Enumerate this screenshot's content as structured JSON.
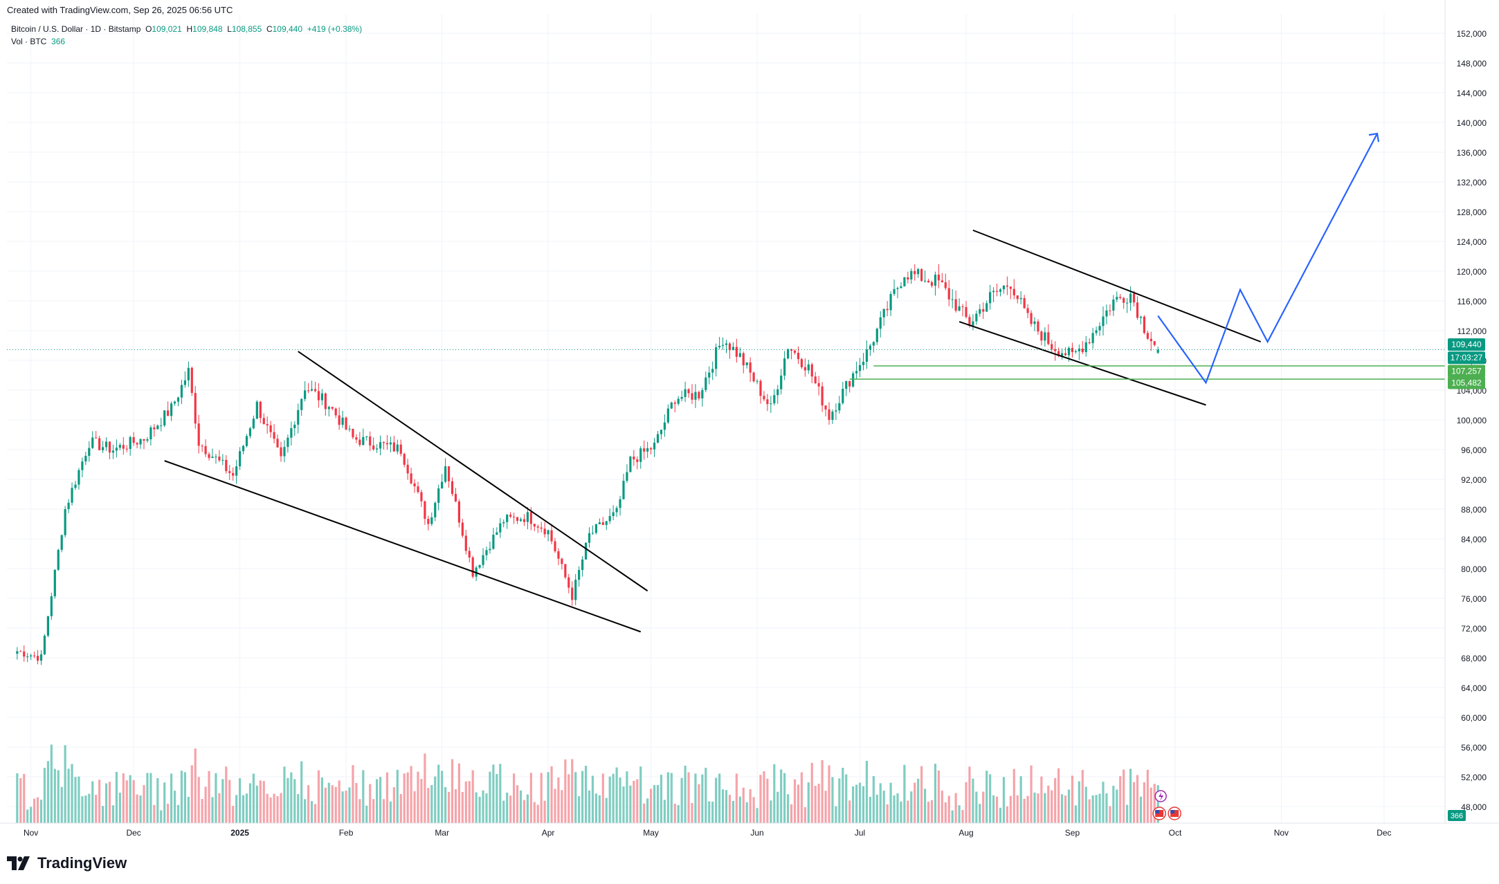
{
  "header": {
    "created_text": "Created with TradingView.com, Sep 26, 2025 06:56 UTC"
  },
  "legend": {
    "symbol": "Bitcoin / U.S. Dollar · 1D · Bitstamp",
    "o_label": "O",
    "o_value": "109,021",
    "h_label": "H",
    "h_value": "109,848",
    "l_label": "L",
    "l_value": "108,855",
    "c_label": "C",
    "c_value": "109,440",
    "change": "+419 (+0.38%)",
    "vol_label": "Vol · BTC",
    "vol_value": "366"
  },
  "brand": {
    "name": "TradingView",
    "logo_icon": "tradingview-logo-icon"
  },
  "price_tags": {
    "last_price": "109,440",
    "countdown": "17:03:27",
    "level_1": "107,257",
    "level_2": "105,482",
    "volume": "366"
  },
  "colors": {
    "up": "#089981",
    "down": "#f23645",
    "vol_up": "#7fcdc1",
    "vol_down": "#f5a3a9",
    "grid": "#f0f3fa",
    "projection": "#2962ff",
    "support": "#4caf50",
    "trendline": "#000000"
  },
  "chart_data": {
    "type": "candlestick",
    "title": "Bitcoin / U.S. Dollar · 1D · Bitstamp",
    "y_axis_ticks": [
      48000,
      52000,
      56000,
      60000,
      64000,
      68000,
      72000,
      76000,
      80000,
      84000,
      88000,
      92000,
      96000,
      100000,
      104000,
      108000,
      112000,
      116000,
      120000,
      124000,
      128000,
      132000,
      136000,
      140000,
      144000,
      148000,
      152000
    ],
    "x_axis_ticks": [
      "Nov",
      "Dec",
      "2025",
      "Feb",
      "Mar",
      "Apr",
      "May",
      "Jun",
      "Jul",
      "Aug",
      "Sep",
      "Oct",
      "Nov",
      "Dec"
    ],
    "ylim": [
      46000,
      154000
    ],
    "close_anchors": [
      {
        "date": "2024-10-28",
        "close": 68900
      },
      {
        "date": "2024-11-04",
        "close": 68000
      },
      {
        "date": "2024-11-11",
        "close": 88000
      },
      {
        "date": "2024-11-18",
        "close": 97000
      },
      {
        "date": "2024-11-25",
        "close": 96000
      },
      {
        "date": "2024-12-04",
        "close": 97500
      },
      {
        "date": "2024-12-12",
        "close": 101500
      },
      {
        "date": "2024-12-17",
        "close": 106500
      },
      {
        "date": "2024-12-20",
        "close": 97000
      },
      {
        "date": "2024-12-30",
        "close": 92500
      },
      {
        "date": "2025-01-06",
        "close": 102000
      },
      {
        "date": "2025-01-13",
        "close": 94500
      },
      {
        "date": "2025-01-20",
        "close": 104500
      },
      {
        "date": "2025-01-27",
        "close": 102000
      },
      {
        "date": "2025-02-03",
        "close": 97500
      },
      {
        "date": "2025-02-17",
        "close": 96000
      },
      {
        "date": "2025-02-25",
        "close": 86000
      },
      {
        "date": "2025-03-02",
        "close": 94000
      },
      {
        "date": "2025-03-10",
        "close": 79500
      },
      {
        "date": "2025-03-19",
        "close": 86500
      },
      {
        "date": "2025-03-26",
        "close": 87000
      },
      {
        "date": "2025-04-01",
        "close": 85000
      },
      {
        "date": "2025-04-08",
        "close": 76300
      },
      {
        "date": "2025-04-13",
        "close": 84500
      },
      {
        "date": "2025-04-21",
        "close": 87500
      },
      {
        "date": "2025-04-25",
        "close": 94500
      },
      {
        "date": "2025-05-02",
        "close": 96500
      },
      {
        "date": "2025-05-08",
        "close": 103000
      },
      {
        "date": "2025-05-15",
        "close": 103500
      },
      {
        "date": "2025-05-22",
        "close": 111000
      },
      {
        "date": "2025-05-27",
        "close": 108500
      },
      {
        "date": "2025-06-05",
        "close": 101500
      },
      {
        "date": "2025-06-10",
        "close": 110000
      },
      {
        "date": "2025-06-16",
        "close": 107000
      },
      {
        "date": "2025-06-22",
        "close": 100500
      },
      {
        "date": "2025-06-30",
        "close": 107000
      },
      {
        "date": "2025-07-03",
        "close": 109000
      },
      {
        "date": "2025-07-10",
        "close": 116000
      },
      {
        "date": "2025-07-14",
        "close": 119800
      },
      {
        "date": "2025-07-24",
        "close": 118500
      },
      {
        "date": "2025-08-02",
        "close": 113000
      },
      {
        "date": "2025-08-08",
        "close": 116500
      },
      {
        "date": "2025-08-14",
        "close": 118500
      },
      {
        "date": "2025-08-19",
        "close": 113500
      },
      {
        "date": "2025-08-26",
        "close": 110000
      },
      {
        "date": "2025-09-01",
        "close": 108500
      },
      {
        "date": "2025-09-06",
        "close": 111000
      },
      {
        "date": "2025-09-13",
        "close": 116000
      },
      {
        "date": "2025-09-18",
        "close": 117000
      },
      {
        "date": "2025-09-22",
        "close": 112500
      },
      {
        "date": "2025-09-26",
        "close": 109440
      }
    ],
    "last_candle": {
      "date": "2025-09-26",
      "open": 109021,
      "high": 109848,
      "low": 108855,
      "close": 109440
    },
    "horizontal_levels": [
      107257,
      105482
    ],
    "falling_wedge_1": {
      "upper": [
        {
          "date": "2025-01-18",
          "price": 109200
        },
        {
          "date": "2025-04-30",
          "price": 77000
        }
      ],
      "lower": [
        {
          "date": "2024-12-10",
          "price": 94500
        },
        {
          "date": "2025-04-28",
          "price": 71500
        }
      ]
    },
    "falling_channel_2": {
      "upper": [
        {
          "date": "2025-08-03",
          "price": 125500
        },
        {
          "date": "2025-10-26",
          "price": 110500
        }
      ],
      "lower": [
        {
          "date": "2025-07-30",
          "price": 113200
        },
        {
          "date": "2025-10-10",
          "price": 102000
        }
      ]
    },
    "projection_path": [
      {
        "date": "2025-09-26",
        "price": 114000
      },
      {
        "date": "2025-10-10",
        "price": 105000
      },
      {
        "date": "2025-10-20",
        "price": 117500
      },
      {
        "date": "2025-10-28",
        "price": 110500
      },
      {
        "date": "2025-11-29",
        "price": 138500
      }
    ]
  }
}
